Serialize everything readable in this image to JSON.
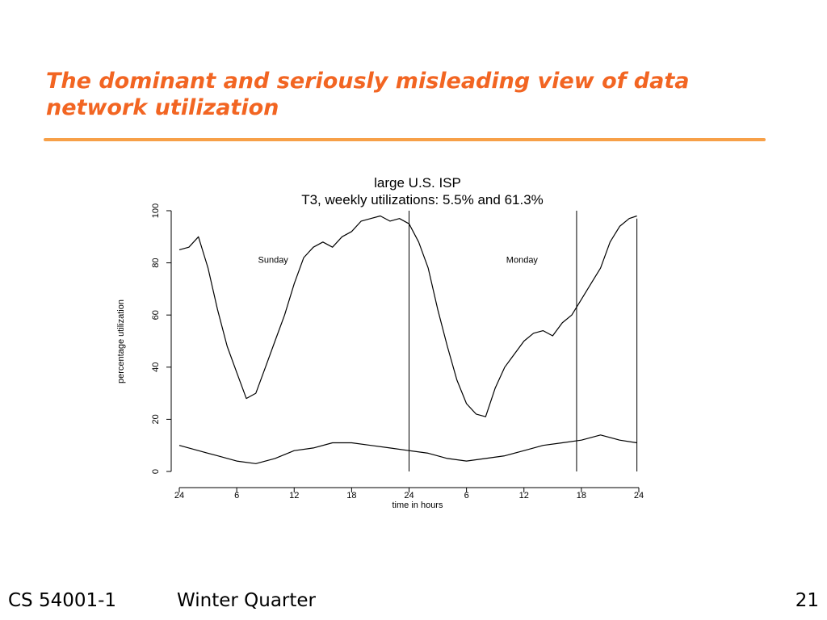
{
  "slide": {
    "title": "The dominant and seriously misleading view of data network utilization",
    "title_color": "#f26522",
    "rule_color": "#f7a048"
  },
  "footer": {
    "course": "CS 54001-1",
    "term": "Winter Quarter",
    "page": "21"
  },
  "chart_data": {
    "type": "line",
    "title": "large U.S. ISP",
    "subtitle": "T3, weekly utilizations: 5.5% and 61.3%",
    "xlabel": "time in hours",
    "ylabel": "percentage utilization",
    "xlim": [
      0,
      48
    ],
    "ylim": [
      0,
      100
    ],
    "xticks": [
      0,
      6,
      12,
      18,
      24,
      30,
      36,
      42,
      48
    ],
    "xtick_labels": [
      "24",
      "6",
      "12",
      "18",
      "24",
      "6",
      "12",
      "18",
      "24"
    ],
    "yticks": [
      0,
      20,
      40,
      60,
      80,
      100
    ],
    "ytick_labels": [
      "0",
      "20",
      "40",
      "60",
      "80",
      "100"
    ],
    "grid": false,
    "day_separators": [
      24,
      41.5
    ],
    "annotations": [
      {
        "text": "Sunday",
        "x": 9.8,
        "y": 80
      },
      {
        "text": "Monday",
        "x": 35.8,
        "y": 80
      }
    ],
    "series": [
      {
        "x": [
          0,
          1,
          2,
          3,
          4,
          5,
          6,
          7,
          8,
          9,
          10,
          11,
          12,
          13,
          14,
          15,
          16,
          17,
          18,
          19,
          20,
          21,
          22,
          23,
          24,
          25,
          26,
          27,
          28,
          29,
          30,
          31,
          32,
          33,
          34,
          35,
          36,
          37,
          38,
          39,
          40,
          41,
          42,
          43,
          44,
          45,
          46,
          47,
          47.8
        ],
        "values": [
          85,
          86,
          90,
          78,
          62,
          48,
          38,
          28,
          30,
          40,
          50,
          60,
          72,
          82,
          86,
          88,
          86,
          90,
          92,
          96,
          97,
          98,
          96,
          97,
          95,
          88,
          78,
          62,
          48,
          35,
          26,
          22,
          21,
          32,
          40,
          45,
          50,
          53,
          54,
          52,
          57,
          60,
          66,
          72,
          78,
          88,
          94,
          97,
          98
        ],
        "color": "#000000"
      },
      {
        "x": [
          0,
          2,
          4,
          6,
          8,
          10,
          12,
          14,
          16,
          18,
          20,
          22,
          24,
          26,
          28,
          30,
          32,
          34,
          36,
          38,
          40,
          42,
          44,
          46,
          47.8
        ],
        "values": [
          10,
          8,
          6,
          4,
          3,
          5,
          8,
          9,
          11,
          11,
          10,
          9,
          8,
          7,
          5,
          4,
          5,
          6,
          8,
          10,
          11,
          12,
          14,
          12,
          11
        ],
        "color": "#000000"
      }
    ]
  }
}
